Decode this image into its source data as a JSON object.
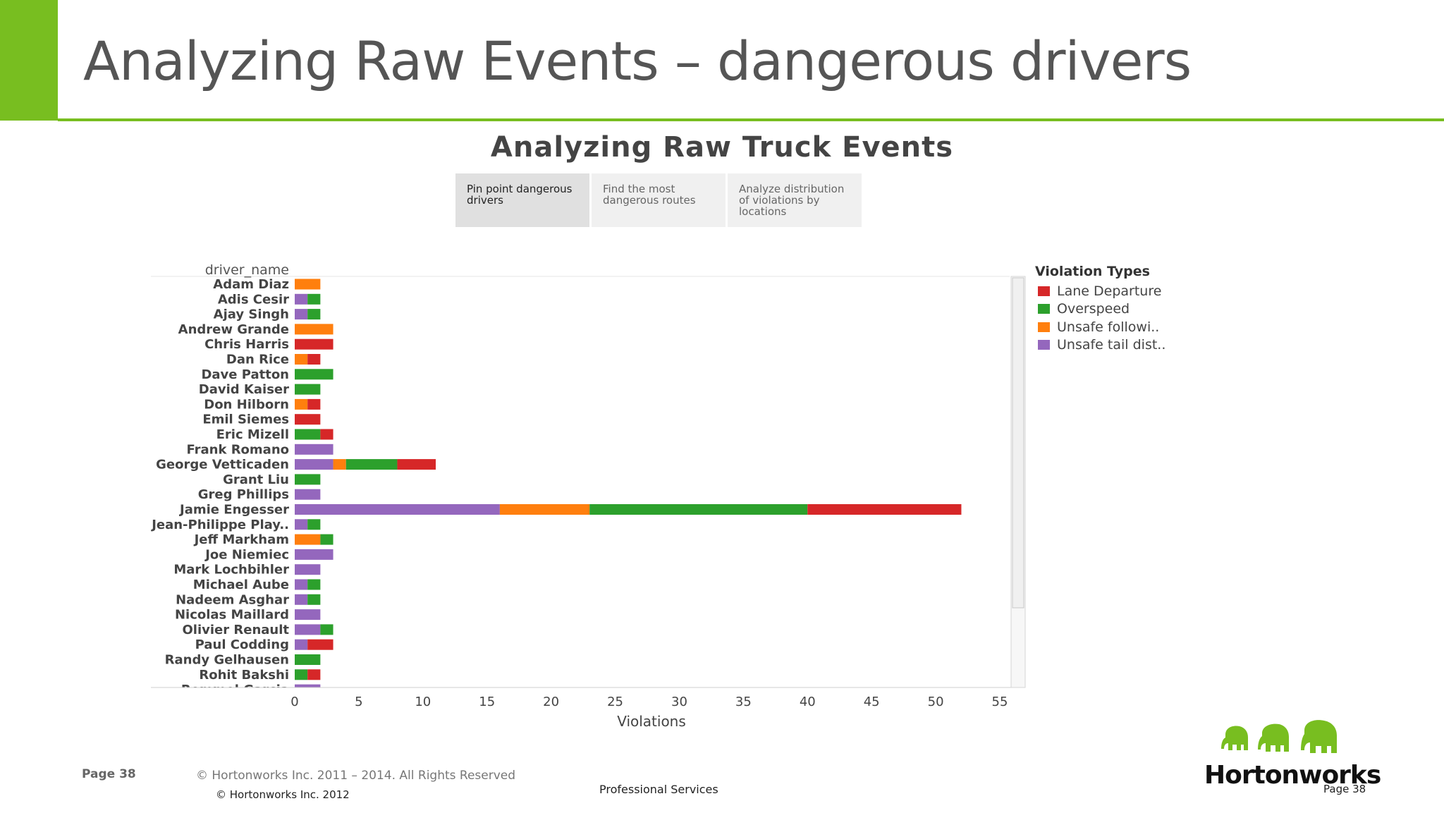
{
  "slide": {
    "title": "Analyzing Raw Events – dangerous drivers"
  },
  "dashboard": {
    "title": "Analyzing Raw Truck Events",
    "tabs": [
      {
        "line1": "Pin point dangerous",
        "line2": "drivers",
        "line3": ""
      },
      {
        "line1": "Find the most",
        "line2": "dangerous routes",
        "line3": ""
      },
      {
        "line1": "Analyze distribution",
        "line2": "of violations by",
        "line3": "locations"
      }
    ]
  },
  "chart_data": {
    "type": "bar",
    "orientation": "horizontal",
    "stacked": true,
    "row_header": "driver_name",
    "xlabel": "Violations",
    "xlim": [
      0,
      55
    ],
    "xticks": [
      0,
      5,
      10,
      15,
      20,
      25,
      30,
      35,
      40,
      45,
      50,
      55
    ],
    "legend_title": "Violation Types",
    "legend_position": "right",
    "categories": [
      "Adam Diaz",
      "Adis Cesir",
      "Ajay Singh",
      "Andrew Grande",
      "Chris Harris",
      "Dan Rice",
      "Dave Patton",
      "David Kaiser",
      "Don Hilborn",
      "Emil Siemes",
      "Eric Mizell",
      "Frank Romano",
      "George Vetticaden",
      "Grant Liu",
      "Greg Phillips",
      "Jamie Engesser",
      "Jean-Philippe Play..",
      "Jeff Markham",
      "Joe Niemiec",
      "Mark Lochbihler",
      "Michael Aube",
      "Nadeem Asghar",
      "Nicolas Maillard",
      "Olivier Renault",
      "Paul Codding",
      "Randy Gelhausen",
      "Rohit Bakshi",
      "Rommel Garcia"
    ],
    "stack_order": [
      "Unsafe tail dist..",
      "Unsafe followi..",
      "Overspeed",
      "Lane Departure"
    ],
    "series": [
      {
        "name": "Lane Departure",
        "color": "#d62728",
        "values": [
          0,
          0,
          0,
          0,
          3,
          1,
          0,
          0,
          1,
          2,
          1,
          0,
          3,
          0,
          0,
          12,
          0,
          0,
          0,
          0,
          0,
          0,
          0,
          0,
          2,
          0,
          1,
          0
        ]
      },
      {
        "name": "Overspeed",
        "color": "#2ca02c",
        "values": [
          0,
          1,
          1,
          0,
          0,
          0,
          3,
          2,
          0,
          0,
          2,
          0,
          4,
          2,
          0,
          17,
          1,
          1,
          0,
          0,
          1,
          1,
          0,
          1,
          0,
          2,
          1,
          0
        ]
      },
      {
        "name": "Unsafe followi..",
        "color": "#ff7f0e",
        "values": [
          2,
          0,
          0,
          3,
          0,
          1,
          0,
          0,
          1,
          0,
          0,
          0,
          1,
          0,
          0,
          7,
          0,
          2,
          0,
          0,
          0,
          0,
          0,
          0,
          0,
          0,
          0,
          0
        ]
      },
      {
        "name": "Unsafe tail dist..",
        "color": "#9467bd",
        "values": [
          0,
          1,
          1,
          0,
          0,
          0,
          0,
          0,
          0,
          0,
          0,
          3,
          3,
          0,
          2,
          16,
          1,
          0,
          3,
          2,
          1,
          1,
          2,
          2,
          1,
          0,
          0,
          2
        ]
      }
    ]
  },
  "footer": {
    "page": "Page 38",
    "copyright": "© Hortonworks Inc. 2011 – 2014. All Rights Reserved",
    "copyright2": "© Hortonworks Inc. 2012",
    "center": "Professional Services",
    "logo": "Hortonworks",
    "logo_page": "Page 38"
  }
}
